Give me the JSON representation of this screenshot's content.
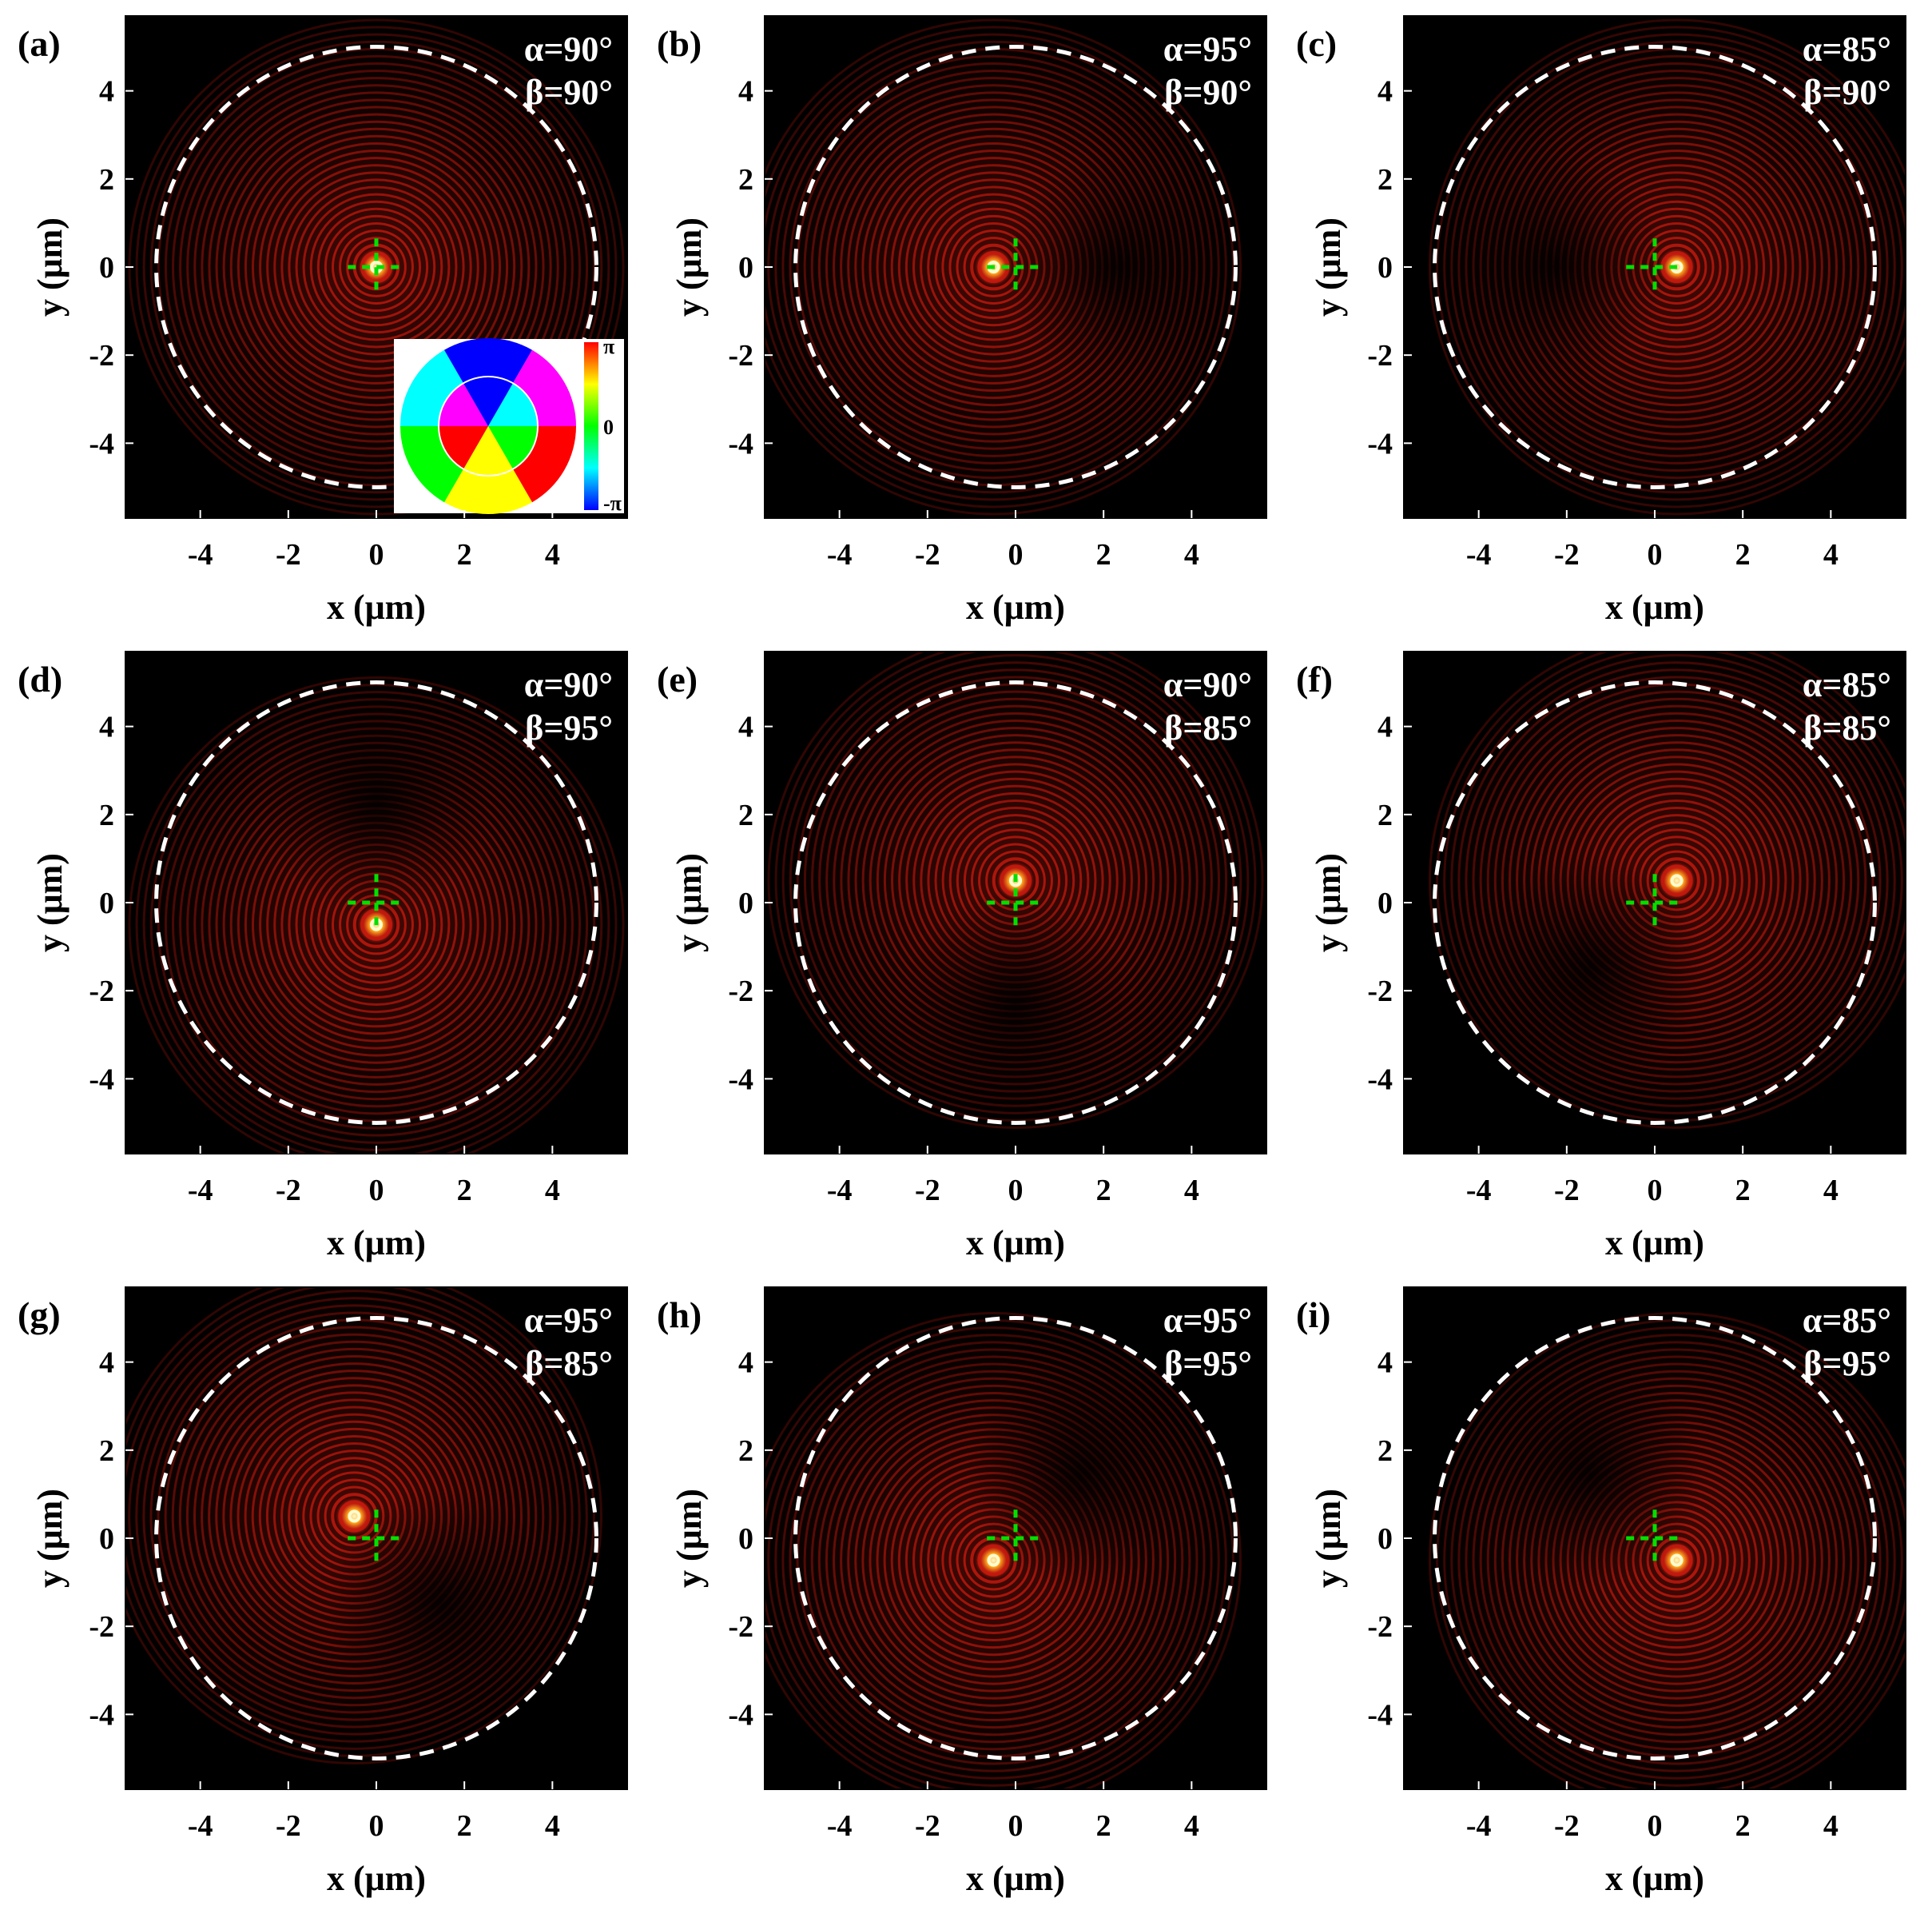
{
  "figure": {
    "axis_range": [
      -5.7,
      5.7
    ],
    "ticks": [
      -4,
      -2,
      0,
      2,
      4
    ],
    "xlabel": "x (μm)",
    "ylabel": "y (μm)",
    "dashed_circle_radius": 5,
    "colors": {
      "background": "#000000",
      "ring": "#c81a0e",
      "hotspot_inner": "#fffbd0",
      "hotspot_mid": "#ffb020",
      "marker": "#00e000",
      "circle": "#ffffff"
    },
    "inset": {
      "tick_labels": [
        "π",
        "0",
        "-π"
      ],
      "colors": [
        "#ff0000",
        "#ffff00",
        "#00ff00",
        "#00ffff",
        "#0000ff"
      ]
    }
  },
  "panels": [
    {
      "label": "(a)",
      "alpha": "α=90°",
      "beta": "β=90°",
      "spot_x": 0.0,
      "spot_y": 0.0,
      "dark_side": "none",
      "has_inset": true
    },
    {
      "label": "(b)",
      "alpha": "α=95°",
      "beta": "β=90°",
      "spot_x": -0.5,
      "spot_y": 0.0,
      "dark_side": "right"
    },
    {
      "label": "(c)",
      "alpha": "α=85°",
      "beta": "β=90°",
      "spot_x": 0.5,
      "spot_y": 0.0,
      "dark_side": "left"
    },
    {
      "label": "(d)",
      "alpha": "α=90°",
      "beta": "β=95°",
      "spot_x": 0.0,
      "spot_y": -0.5,
      "dark_side": "up"
    },
    {
      "label": "(e)",
      "alpha": "α=90°",
      "beta": "β=85°",
      "spot_x": 0.0,
      "spot_y": 0.5,
      "dark_side": "down"
    },
    {
      "label": "(f)",
      "alpha": "α=85°",
      "beta": "β=85°",
      "spot_x": 0.5,
      "spot_y": 0.5,
      "dark_side": "down-left"
    },
    {
      "label": "(g)",
      "alpha": "α=95°",
      "beta": "β=85°",
      "spot_x": -0.5,
      "spot_y": 0.5,
      "dark_side": "down-right"
    },
    {
      "label": "(h)",
      "alpha": "α=95°",
      "beta": "β=95°",
      "spot_x": -0.5,
      "spot_y": -0.5,
      "dark_side": "up-right"
    },
    {
      "label": "(i)",
      "alpha": "α=85°",
      "beta": "β=95°",
      "spot_x": 0.5,
      "spot_y": -0.5,
      "dark_side": "up-left"
    }
  ]
}
